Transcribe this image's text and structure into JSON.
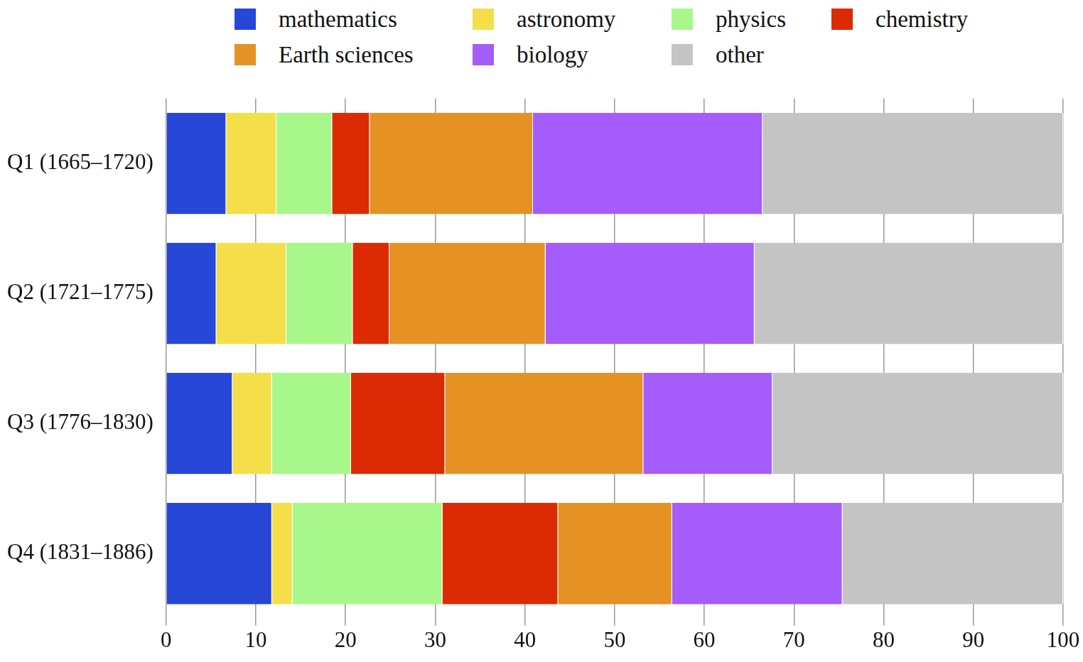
{
  "chart_data": {
    "type": "bar",
    "orientation": "horizontal",
    "stacked": true,
    "categories": [
      "Q1 (1665–1720)",
      "Q2 (1721–1775)",
      "Q3 (1776–1830)",
      "Q4 (1831–1886)"
    ],
    "series": [
      {
        "name": "mathematics",
        "color": "#2747d6",
        "values": [
          6.7,
          5.6,
          7.4,
          11.8
        ]
      },
      {
        "name": "astronomy",
        "color": "#f4de4a",
        "values": [
          5.6,
          7.8,
          4.4,
          2.3
        ]
      },
      {
        "name": "physics",
        "color": "#a8f78a",
        "values": [
          6.2,
          7.4,
          8.8,
          16.7
        ]
      },
      {
        "name": "chemistry",
        "color": "#dc2b04",
        "values": [
          4.2,
          4.1,
          10.5,
          12.9
        ]
      },
      {
        "name": "Earth sciences",
        "color": "#e69124",
        "values": [
          18.2,
          17.4,
          22.1,
          12.7
        ]
      },
      {
        "name": "biology",
        "color": "#a45cfa",
        "values": [
          25.6,
          23.3,
          14.4,
          19.0
        ]
      },
      {
        "name": "other",
        "color": "#c4c4c4",
        "values": [
          33.5,
          34.4,
          32.4,
          24.6
        ]
      }
    ],
    "xlim": [
      0,
      100
    ],
    "xticks": [
      0,
      10,
      20,
      30,
      40,
      50,
      60,
      70,
      80,
      90,
      100
    ],
    "grid": true,
    "legend": "top"
  }
}
